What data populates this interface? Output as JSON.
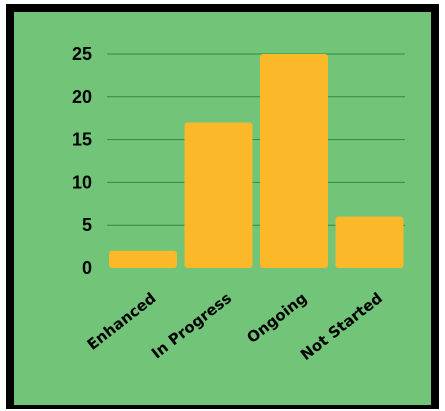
{
  "chart_data": {
    "type": "bar",
    "categories": [
      "Enhanced",
      "In Progress",
      "Ongoing",
      "Not Started"
    ],
    "values": [
      2,
      17,
      25,
      6
    ],
    "ylim": [
      0,
      25
    ],
    "yticks": [
      "0",
      "5",
      "10",
      "15",
      "20",
      "25"
    ],
    "grid": true,
    "legend": "none",
    "colors": {
      "bar": "#fbb828",
      "background": "#72c578",
      "border": "#000000",
      "grid": "#2f8a3a"
    }
  }
}
